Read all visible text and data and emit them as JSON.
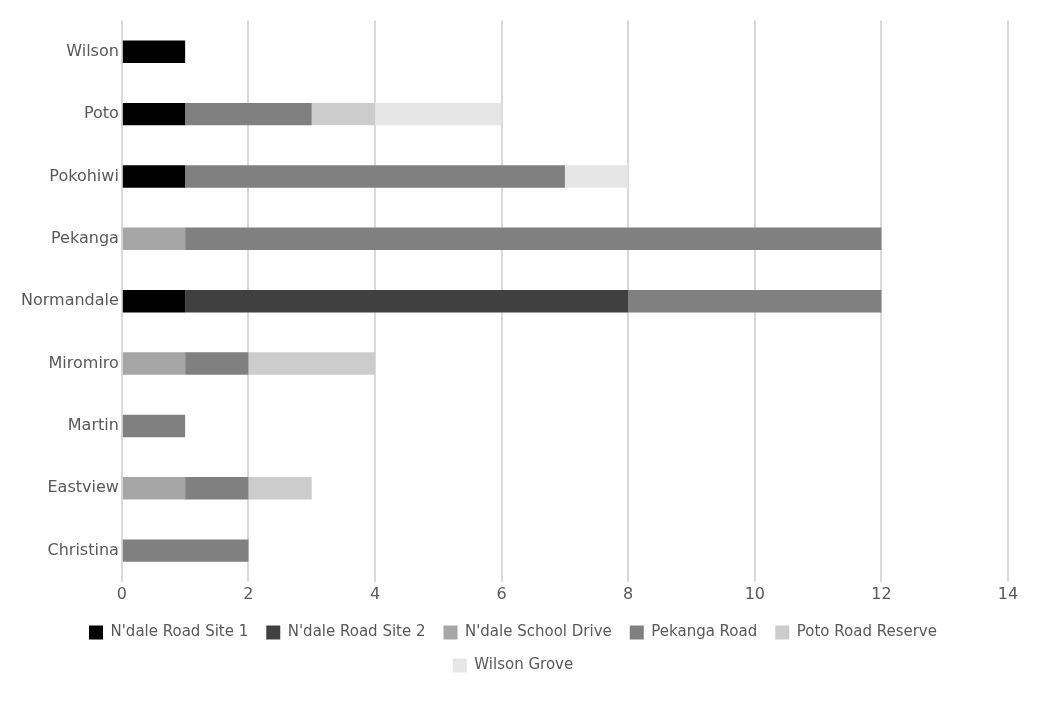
{
  "chart_data": {
    "type": "bar",
    "orientation": "horizontal",
    "stacked": true,
    "categories": [
      "Wilson",
      "Poto",
      "Pokohiwi",
      "Pekanga",
      "Normandale",
      "Miromiro",
      "Martin",
      "Eastview",
      "Christina"
    ],
    "series": [
      {
        "name": "N'dale Road Site 1",
        "color": "#000000",
        "values": [
          1,
          1,
          1,
          null,
          1,
          null,
          null,
          null,
          null
        ]
      },
      {
        "name": "N'dale Road Site 2",
        "color": "#404040",
        "values": [
          null,
          null,
          null,
          null,
          7,
          null,
          null,
          null,
          null
        ]
      },
      {
        "name": "N'dale School Drive",
        "color": "#a6a6a6",
        "values": [
          null,
          null,
          null,
          1,
          null,
          1,
          null,
          1,
          null
        ]
      },
      {
        "name": "Pekanga Road",
        "color": "#808080",
        "values": [
          null,
          2,
          6,
          11,
          4,
          1,
          1,
          1,
          2
        ]
      },
      {
        "name": "Poto Road Reserve",
        "color": "#cccccc",
        "values": [
          null,
          1,
          null,
          null,
          null,
          2,
          null,
          1,
          null
        ]
      },
      {
        "name": "Wilson Grove",
        "color": "#e6e6e6",
        "values": [
          null,
          2,
          1,
          null,
          null,
          null,
          null,
          null,
          null
        ]
      }
    ],
    "xlim": [
      0,
      14
    ],
    "xticks": [
      0,
      2,
      4,
      6,
      8,
      10,
      12,
      14
    ],
    "grid": "x",
    "legend": "bottom"
  }
}
